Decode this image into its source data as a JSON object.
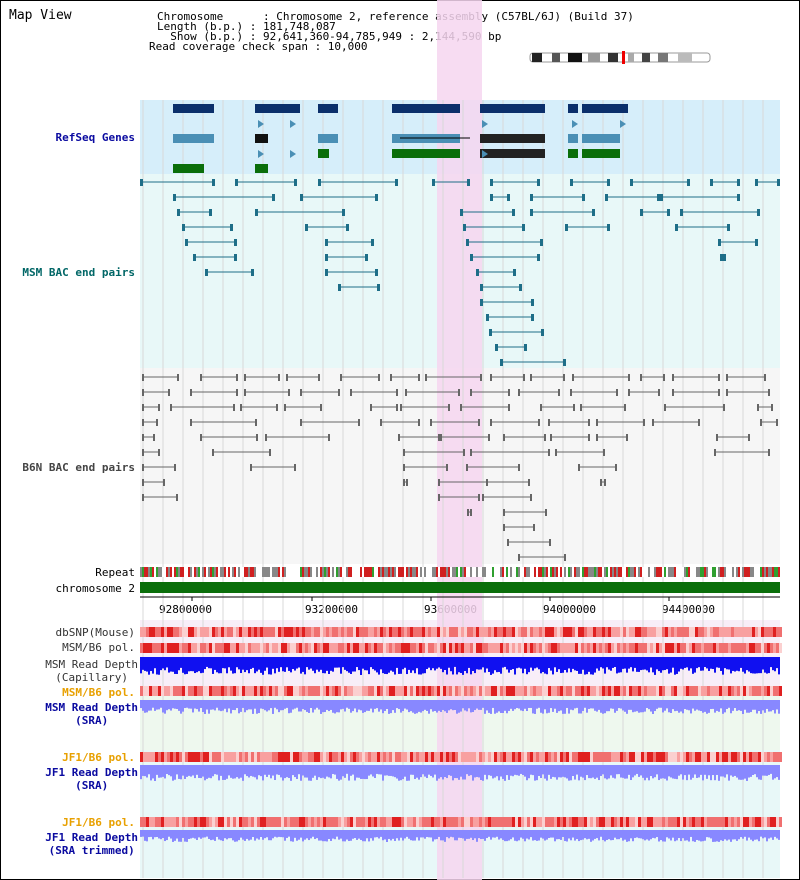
{
  "title": "Map View",
  "info": {
    "chromosome": "Chromosome      : Chromosome 2, reference assembly (C57BL/6J) (Build 37)",
    "length": "Length (b.p.) : 181,748,087",
    "show": "  Show (b.p.) : 92,641,360-94,785,949 : 2,144,590 bp",
    "read_coverage": "Read coverage check span : 10,000"
  },
  "tracks": {
    "refseq": "RefSeq Genes",
    "msm_bac": "MSM BAC end pairs",
    "b6n_bac": "B6N BAC end pairs",
    "repeat": "Repeat",
    "chromosome": "chromosome 2",
    "dbsnp": "dbSNP(Mouse)",
    "msm_b6_pol_1": "MSM/B6 pol.",
    "msm_rd_cap_1": "MSM Read Depth",
    "msm_rd_cap_2": "(Capillary)",
    "msm_b6_pol_2": "MSM/B6 pol.",
    "msm_rd_sra_1": "MSM Read Depth",
    "msm_rd_sra_2": "(SRA)",
    "jf1_b6_pol_1": "JF1/B6 pol.",
    "jf1_rd_sra_1": "JF1 Read Depth",
    "jf1_rd_sra_2": "(SRA)",
    "jf1_b6_pol_2": "JF1/B6 pol.",
    "jf1_rd_trim_1": "JF1 Read Depth",
    "jf1_rd_trim_2": "(SRA trimmed)"
  },
  "axis": [
    "92800000",
    "93200000",
    "93600000",
    "94000000",
    "94400000"
  ],
  "colors": {
    "refseq_bg": "#d6eefa",
    "msm_bg": "#e8f8f8",
    "b6n_bg": "#f6f6f6",
    "highlight": "#f6d6f0",
    "gene_dark": "#0b2f6b",
    "gene_mid": "#4a8fb5",
    "gene_green": "#0a6e0a",
    "msm_pair": "#1e6e88",
    "b6n_pair": "#666666",
    "chromosome_bar": "#0a6e0a",
    "depth_dark": "#1010f0",
    "depth_light": "#8888ff",
    "snp": "#f06060"
  }
}
